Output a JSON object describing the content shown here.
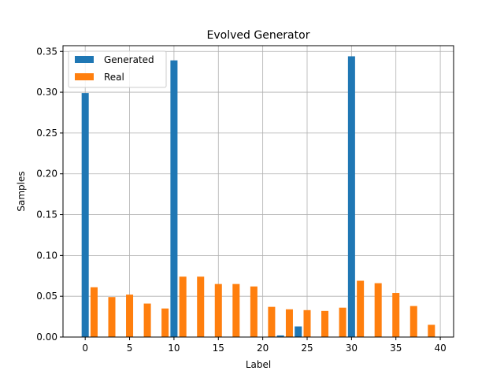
{
  "chart_data": {
    "type": "bar",
    "title": "Evolved Generator",
    "xlabel": "Label",
    "ylabel": "Samples",
    "xlim": [
      -2.5,
      41.5
    ],
    "ylim": [
      0,
      0.357
    ],
    "x_ticks": [
      0,
      5,
      10,
      15,
      20,
      25,
      30,
      35,
      40
    ],
    "y_ticks": [
      0.0,
      0.05,
      0.1,
      0.15,
      0.2,
      0.25,
      0.3,
      0.35
    ],
    "y_tick_labels": [
      "0.00",
      "0.05",
      "0.10",
      "0.15",
      "0.20",
      "0.25",
      "0.30",
      "0.35"
    ],
    "grid": true,
    "legend_position": "top-left",
    "series": [
      {
        "name": "Generated",
        "color": "#1f77b4",
        "x": [
          0,
          10,
          22,
          24,
          30
        ],
        "values": [
          0.299,
          0.339,
          0.002,
          0.013,
          0.344
        ]
      },
      {
        "name": "Real",
        "color": "#ff7f0e",
        "x": [
          1,
          3,
          5,
          7,
          9,
          11,
          13,
          15,
          17,
          19,
          21,
          23,
          25,
          27,
          29,
          31,
          33,
          35,
          37,
          39
        ],
        "values": [
          0.061,
          0.049,
          0.052,
          0.041,
          0.035,
          0.074,
          0.074,
          0.065,
          0.065,
          0.062,
          0.037,
          0.034,
          0.033,
          0.032,
          0.036,
          0.069,
          0.066,
          0.054,
          0.038,
          0.015
        ]
      }
    ]
  }
}
